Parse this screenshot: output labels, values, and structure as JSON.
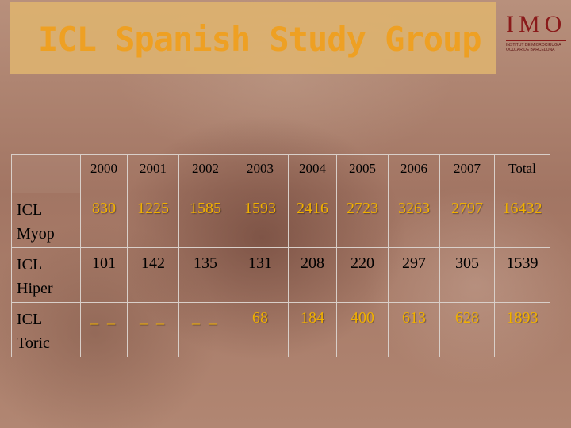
{
  "title": "ICL Spanish Study Group",
  "logo": {
    "letters": "IMO",
    "subtitle": "INSTITUT DE MICROCIRUGIA OCULAR DE BARCELONA"
  },
  "table": {
    "headers": [
      "2000",
      "2001",
      "2002",
      "2003",
      "2004",
      "2005",
      "2006",
      "2007",
      "Total"
    ],
    "rows": [
      {
        "label_line1": "ICL",
        "label_line2": "Myop",
        "values": [
          "830",
          "1225",
          "1585",
          "1593",
          "2416",
          "2723",
          "3263",
          "2797",
          "16432"
        ]
      },
      {
        "label_line1": "ICL",
        "label_line2": "Hiper",
        "values": [
          "101",
          "142",
          "135",
          "131",
          "208",
          "220",
          "297",
          "305",
          "1539"
        ]
      },
      {
        "label_line1": "ICL",
        "label_line2": "Toric",
        "values": [
          "_ _",
          "_ _",
          "_ _",
          "68",
          "184",
          "400",
          "613",
          "628",
          "1893"
        ]
      }
    ]
  },
  "colors": {
    "title_text": "#f3a21c",
    "title_box": "#ddb270",
    "highlight_values": "#f0b000",
    "logo": "#8a1a1a"
  }
}
